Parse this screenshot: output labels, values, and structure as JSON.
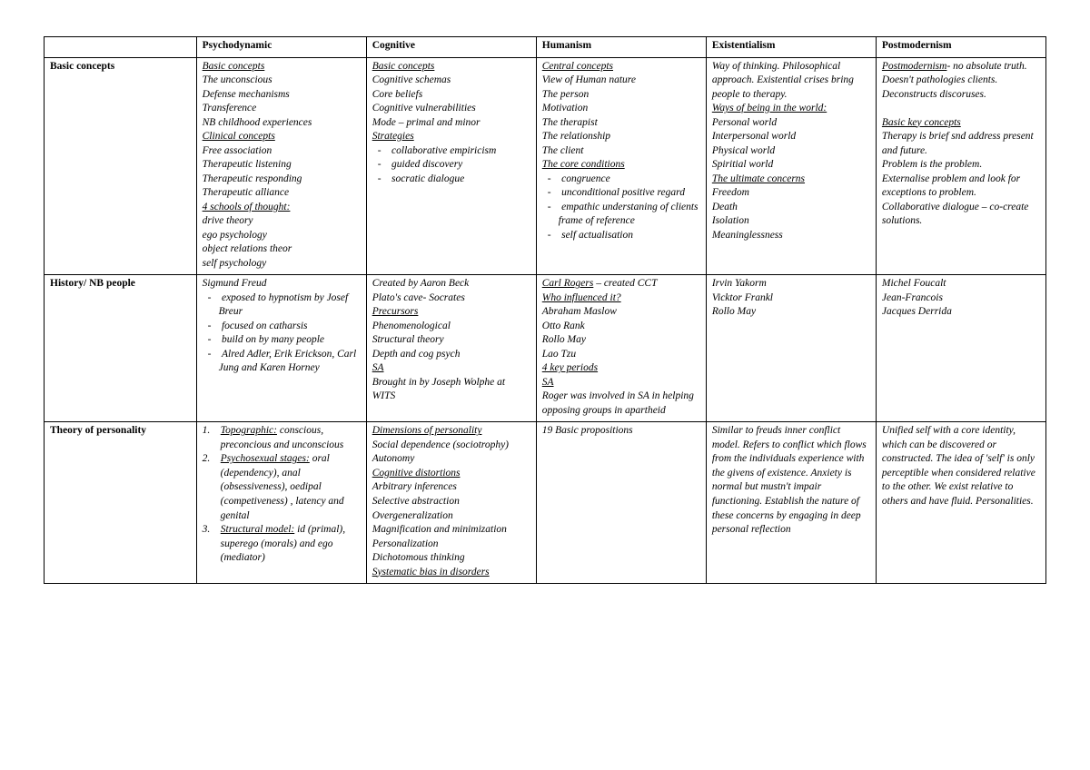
{
  "columns": [
    "Psychodynamic",
    "Cognitive",
    "Humanism",
    "Existentialism",
    "Postmodernism"
  ],
  "rows": [
    "Basic concepts",
    "History/ NB people",
    "Theory of personality"
  ],
  "r0c0": [
    {
      "t": "Basic concepts",
      "cls": "u"
    },
    {
      "t": "The unconscious",
      "cls": "txt"
    },
    {
      "t": "Defense mechanisms",
      "cls": "txt"
    },
    {
      "t": "Transference",
      "cls": "txt"
    },
    {
      "t": "NB childhood experiences",
      "cls": "txt"
    },
    {
      "t": "Clinical concepts",
      "cls": "u"
    },
    {
      "t": "Free association",
      "cls": "txt"
    },
    {
      "t": "Therapeutic listening",
      "cls": "txt"
    },
    {
      "t": "Therapeutic responding",
      "cls": "txt"
    },
    {
      "t": "Therapeutic alliance",
      "cls": "txt"
    },
    {
      "t": "4 schools of thought:",
      "cls": "u"
    },
    {
      "t": "drive theory",
      "cls": "txt"
    },
    {
      "t": "ego psychology",
      "cls": "txt"
    },
    {
      "t": "object relations theor",
      "cls": "txt"
    },
    {
      "t": "self psychology",
      "cls": "txt"
    }
  ],
  "r0c1": [
    {
      "t": "Basic concepts",
      "cls": "u"
    },
    {
      "t": "Cognitive schemas",
      "cls": "txt"
    },
    {
      "t": "Core beliefs",
      "cls": "txt"
    },
    {
      "t": "Cognitive vulnerabilities",
      "cls": "txt"
    },
    {
      "t": "Mode – primal and minor",
      "cls": "txt"
    },
    {
      "t": "Strategies",
      "cls": "u"
    },
    {
      "t": "- collaborative empiricism",
      "cls": "sub"
    },
    {
      "t": "- guided discovery",
      "cls": "sub"
    },
    {
      "t": "- socratic dialogue",
      "cls": "sub"
    }
  ],
  "r0c2": [
    {
      "t": "Central concepts",
      "cls": "u"
    },
    {
      "t": "View of Human nature",
      "cls": "txt"
    },
    {
      "t": "The person",
      "cls": "txt"
    },
    {
      "t": "Motivation",
      "cls": "txt"
    },
    {
      "t": "The therapist",
      "cls": "txt"
    },
    {
      "t": "The relationship",
      "cls": "txt"
    },
    {
      "t": "The client",
      "cls": "txt"
    },
    {
      "t": "The core conditions",
      "cls": "u"
    },
    {
      "t": "- congruence",
      "cls": "sub"
    },
    {
      "t": "- unconditional positive regard",
      "cls": "sub"
    },
    {
      "t": "- empathic understaning of clients frame of reference",
      "cls": "sub"
    },
    {
      "t": "- self actualisation",
      "cls": "sub"
    }
  ],
  "r0c3": [
    {
      "t": "Way of thinking. Philosophical approach. Existential crises bring people to therapy.",
      "cls": "txt"
    },
    {
      "t": "Ways of being in the world:",
      "cls": "u"
    },
    {
      "t": "Personal world",
      "cls": "txt"
    },
    {
      "t": "Interpersonal world",
      "cls": "txt"
    },
    {
      "t": "Physical world",
      "cls": "txt"
    },
    {
      "t": "Spiritial world",
      "cls": "txt"
    },
    {
      "t": "The ultimate concerns",
      "cls": "u"
    },
    {
      "t": "Freedom",
      "cls": "txt"
    },
    {
      "t": "Death",
      "cls": "txt"
    },
    {
      "t": "Isolation",
      "cls": "txt"
    },
    {
      "t": "Meaninglessness",
      "cls": "txt"
    }
  ],
  "r0c4": [
    {
      "t": "Postmodernism",
      "cls": "u"
    },
    {
      "t": "- no absolute truth. Doesn't pathologies clients. Deconstructs discoruses.",
      "cls": "txt",
      "inline": true
    },
    {
      "t": " ",
      "cls": "txt"
    },
    {
      "t": "Basic key concepts",
      "cls": "u"
    },
    {
      "t": "Therapy is brief snd address present and future.",
      "cls": "txt"
    },
    {
      "t": "Problem is the problem.",
      "cls": "txt"
    },
    {
      "t": "Externalise problem and look for exceptions to problem.",
      "cls": "txt"
    },
    {
      "t": "Collaborative dialogue – co-create solutions.",
      "cls": "txt"
    }
  ],
  "r1c0": [
    {
      "t": "Sigmund Freud",
      "cls": "txt"
    },
    {
      "t": "- exposed to hypnotism by Josef Breur",
      "cls": "sub"
    },
    {
      "t": "- focused on catharsis",
      "cls": "sub"
    },
    {
      "t": "- build on by many people",
      "cls": "sub"
    },
    {
      "t": "- Alred Adler, Erik Erickson, Carl Jung and Karen Horney",
      "cls": "sub"
    }
  ],
  "r1c1": [
    {
      "t": "Created by Aaron Beck",
      "cls": "txt"
    },
    {
      "t": "Plato's cave- Socrates",
      "cls": "txt"
    },
    {
      "t": "Precursors",
      "cls": "u"
    },
    {
      "t": "Phenomenological",
      "cls": "txt"
    },
    {
      "t": "Structural theory",
      "cls": "txt"
    },
    {
      "t": "Depth and cog psych",
      "cls": "txt"
    },
    {
      "t": "SA",
      "cls": "u"
    },
    {
      "t": "Brought in by Joseph Wolphe at WITS",
      "cls": "txt"
    }
  ],
  "r1c2": [
    {
      "t": "Carl Rogers",
      "cls": "u"
    },
    {
      "t": " – created CCT",
      "cls": "txt",
      "inline": true
    },
    {
      "t": "Who influenced it?",
      "cls": "u"
    },
    {
      "t": "Abraham Maslow",
      "cls": "txt"
    },
    {
      "t": "Otto Rank",
      "cls": "txt"
    },
    {
      "t": "Rollo May",
      "cls": "txt"
    },
    {
      "t": "Lao Tzu",
      "cls": "txt"
    },
    {
      "t": "4 key periods",
      "cls": "u"
    },
    {
      "t": "SA",
      "cls": "u"
    },
    {
      "t": "Roger was involved in SA in helping opposing groups in apartheid",
      "cls": "txt"
    }
  ],
  "r1c3": [
    {
      "t": "Irvin Yakorm",
      "cls": "txt"
    },
    {
      "t": "Vicktor Frankl",
      "cls": "txt"
    },
    {
      "t": "Rollo May",
      "cls": "txt"
    }
  ],
  "r1c4": [
    {
      "t": "Michel Foucalt",
      "cls": "txt"
    },
    {
      "t": "Jean-Francois",
      "cls": "txt"
    },
    {
      "t": "Jacques Derrida",
      "cls": "txt"
    }
  ],
  "r2c0": [
    {
      "n": "1.",
      "u": "Topographic:",
      "t": " conscious, preconcious and unconscious"
    },
    {
      "n": "2.",
      "u": "Psychosexual stages:",
      "t": " oral (dependency), anal (obsessiveness), oedipal (competiveness) , latency and genital"
    },
    {
      "n": "3.",
      "u": "Structural model:",
      "t": " id (primal), superego (morals) and ego (mediator)"
    }
  ],
  "r2c1": [
    {
      "t": "Dimensions of personality",
      "cls": "u"
    },
    {
      "t": "Social dependence (sociotrophy)",
      "cls": "txt"
    },
    {
      "t": "Autonomy",
      "cls": "txt"
    },
    {
      "t": "Cognitive distortions",
      "cls": "u"
    },
    {
      "t": "Arbitrary inferences",
      "cls": "txt"
    },
    {
      "t": "Selective abstraction",
      "cls": "txt"
    },
    {
      "t": "Overgeneralization",
      "cls": "txt"
    },
    {
      "t": "Magnification and minimization",
      "cls": "txt"
    },
    {
      "t": "Personalization",
      "cls": "txt"
    },
    {
      "t": "Dichotomous thinking",
      "cls": "txt"
    },
    {
      "t": "Systematic bias in disorders",
      "cls": "u"
    }
  ],
  "r2c2": [
    {
      "t": "19 Basic propositions",
      "cls": "txt"
    }
  ],
  "r2c3": [
    {
      "t": "Similar to freuds inner conflict model. Refers to conflict which flows from the individuals experience with the givens of existence. Anxiety is normal but mustn't impair functioning.  Establish the nature of these concerns by engaging in deep personal reflection",
      "cls": "txt"
    }
  ],
  "r2c4": [
    {
      "t": "Unified self with a core identity, which can be discovered or constructed. The idea of 'self' is only perceptible when considered relative to the other. We exist relative to others and have fluid. Personalities.",
      "cls": "txt"
    }
  ]
}
